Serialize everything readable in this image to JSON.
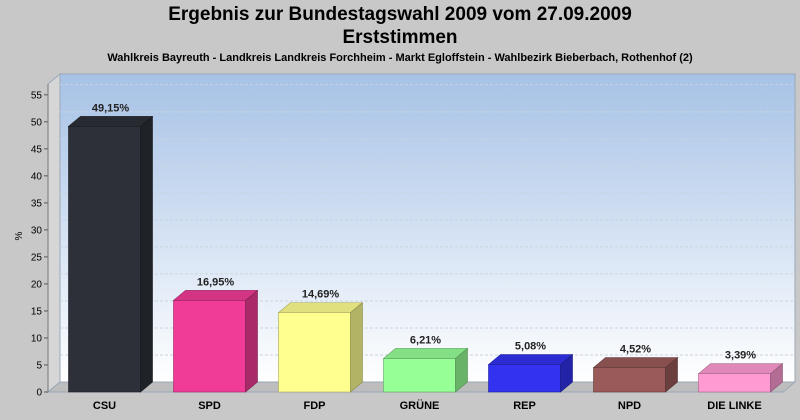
{
  "chart_data": {
    "type": "bar",
    "title": "Ergebnis zur Bundestagswahl 2009 vom 27.09.2009",
    "title_line2": "Erststimmen",
    "subtitle": "Wahlkreis Bayreuth - Landkreis Landkreis Forchheim - Markt Egloffstein - Wahlbezirk Bieberbach, Rothenhof (2)",
    "ylabel": "%",
    "xlabel": "",
    "ylim": [
      0,
      57
    ],
    "yticks": [
      0,
      5,
      10,
      15,
      20,
      25,
      30,
      35,
      40,
      45,
      50,
      55
    ],
    "grid": true,
    "categories": [
      "CSU",
      "SPD",
      "FDP",
      "GRÜNE",
      "REP",
      "NPD",
      "DIE LINKE"
    ],
    "values": [
      49.15,
      16.95,
      14.69,
      6.21,
      5.08,
      4.52,
      3.39
    ],
    "value_labels": [
      "49,15%",
      "16,95%",
      "14,69%",
      "6,21%",
      "5,08%",
      "4,52%",
      "3,39%"
    ],
    "colors": [
      "#2d3038",
      "#f03c96",
      "#ffff90",
      "#96ff96",
      "#3232f0",
      "#9a5a5a",
      "#ff9ad2"
    ]
  }
}
